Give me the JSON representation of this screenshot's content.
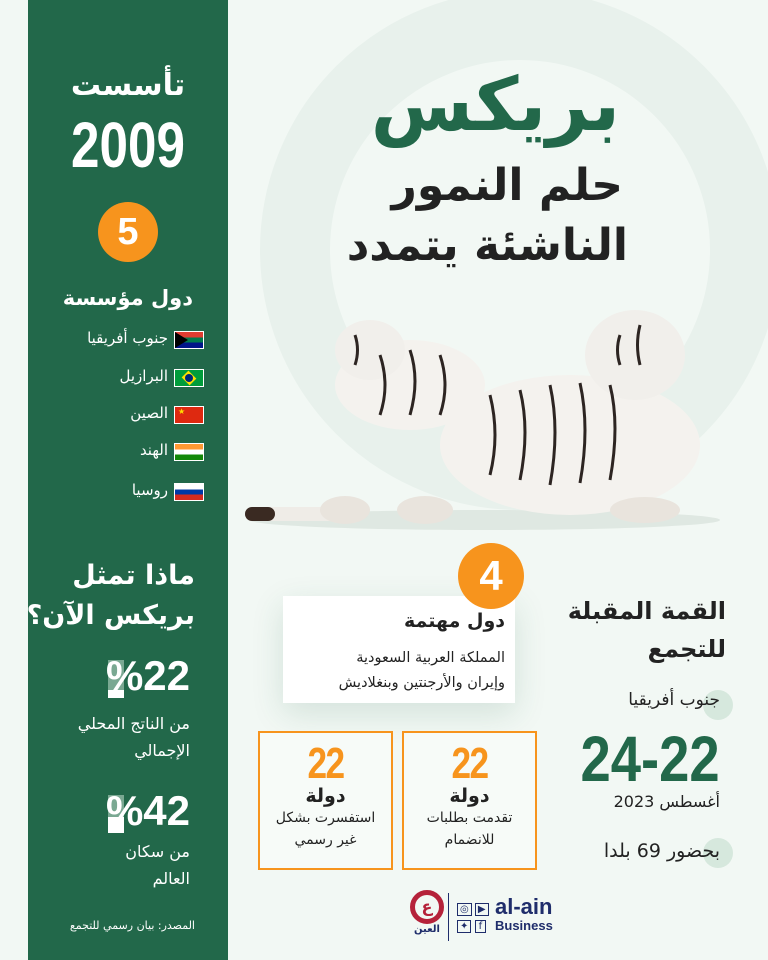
{
  "sidebar": {
    "founded_label": "تأسست",
    "founded_year": "2009",
    "founders_count": "5",
    "founders_label": "دول مؤسسة",
    "countries": [
      {
        "name": "جنوب أفريقيا",
        "flag": "south-africa-flag"
      },
      {
        "name": "البرازيل",
        "flag": "brazil-flag"
      },
      {
        "name": "الصين",
        "flag": "china-flag"
      },
      {
        "name": "الهند",
        "flag": "india-flag"
      },
      {
        "name": "روسيا",
        "flag": "russia-flag"
      }
    ],
    "question": "ماذا تمثل بريكس الآن؟",
    "stats": [
      {
        "value": "%22",
        "percent": 22,
        "line1": "من الناتج المحلي",
        "line2": "الإجمالي"
      },
      {
        "value": "%42",
        "percent": 42,
        "line1": "من سكان",
        "line2": "العالم"
      }
    ],
    "source": "المصدر: بيان رسمي للتجمع"
  },
  "header": {
    "title": "بريكس",
    "subtitle1": "حلم النمور",
    "subtitle2": "الناشئة يتمدد"
  },
  "interested": {
    "count": "4",
    "title": "دول مهتمة",
    "line1": "المملكة العربية السعودية",
    "line2": "وإيران والأرجنتين وبنغلاديش"
  },
  "boxes": [
    {
      "number": "22",
      "unit": "دولة",
      "line1": "تقدمت بطلبات",
      "line2": "للانضمام"
    },
    {
      "number": "22",
      "unit": "دولة",
      "line1": "استفسرت بشكل",
      "line2": "غير رسمي"
    }
  ],
  "summit": {
    "title1": "القمة المقبلة",
    "title2": "للتجمع",
    "location": "جنوب أفريقيا",
    "dates": "24-22",
    "month": "أغسطس 2023",
    "attendance": "بحضور 69 بلدا"
  },
  "logo": {
    "arabic": "العين",
    "brand1": "al-ain",
    "brand2": "Business"
  },
  "colors": {
    "green": "#22684a",
    "orange": "#f7941d",
    "background": "#f2f8f4"
  }
}
